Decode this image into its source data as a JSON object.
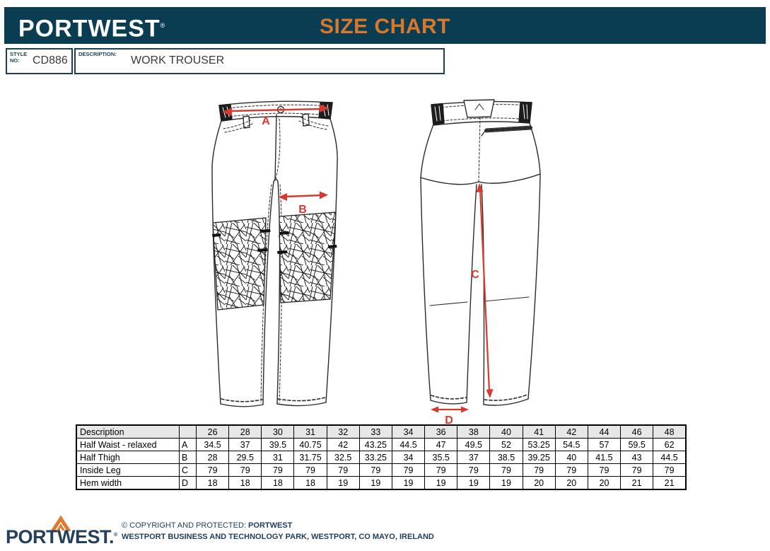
{
  "header": {
    "brand": "PORTWEST",
    "brand_reg": "®",
    "title": "SIZE CHART"
  },
  "style_box": {
    "style_label_line1": "STYLE",
    "style_label_line2": "NO:",
    "style_value": "CD886",
    "description_label": "DESCRIPTION:",
    "description_value": "WORK TROUSER"
  },
  "diagram": {
    "label_a": "A",
    "label_b": "B",
    "label_c": "C",
    "label_d": "D",
    "views": [
      "front",
      "back"
    ],
    "arrow_color": "#d8392f"
  },
  "size_table": {
    "columns": [
      "Description",
      "",
      "26",
      "28",
      "30",
      "31",
      "32",
      "33",
      "34",
      "36",
      "38",
      "40",
      "41",
      "42",
      "44",
      "46",
      "48"
    ],
    "rows": [
      {
        "description": "Half Waist - relaxed",
        "letter": "A",
        "values": [
          "34.5",
          "37",
          "39.5",
          "40.75",
          "42",
          "43.25",
          "44.5",
          "47",
          "49.5",
          "52",
          "53.25",
          "54.5",
          "57",
          "59.5",
          "62"
        ]
      },
      {
        "description": "Half Thigh",
        "letter": "B",
        "values": [
          "28",
          "29.5",
          "31",
          "31.75",
          "32.5",
          "33.25",
          "34",
          "35.5",
          "37",
          "38.5",
          "39.25",
          "40",
          "41.5",
          "43",
          "44.5"
        ]
      },
      {
        "description": "Inside Leg",
        "letter": "C",
        "values": [
          "79",
          "79",
          "79",
          "79",
          "79",
          "79",
          "79",
          "79",
          "79",
          "79",
          "79",
          "79",
          "79",
          "79",
          "79"
        ]
      },
      {
        "description": "Hem width",
        "letter": "D",
        "values": [
          "18",
          "18",
          "18",
          "18",
          "19",
          "19",
          "19",
          "19",
          "19",
          "19",
          "20",
          "20",
          "20",
          "21",
          "21"
        ]
      }
    ]
  },
  "footer": {
    "logo": "PORTWEST.",
    "logo_reg": "®",
    "line1_prefix": "© COPYRIGHT AND PROTECTED: ",
    "line1_bold": "PORTWEST",
    "line2": "WESTPORT BUSINESS AND TECHNOLOGY PARK, WESTPORT, CO MAYO, IRELAND"
  },
  "colors": {
    "header_bar": "#0a3c52",
    "title_orange": "#d9782b",
    "arrow_red": "#d8392f",
    "navy_text": "#1e3d57",
    "table_header_bg": "#e7e7e7"
  }
}
